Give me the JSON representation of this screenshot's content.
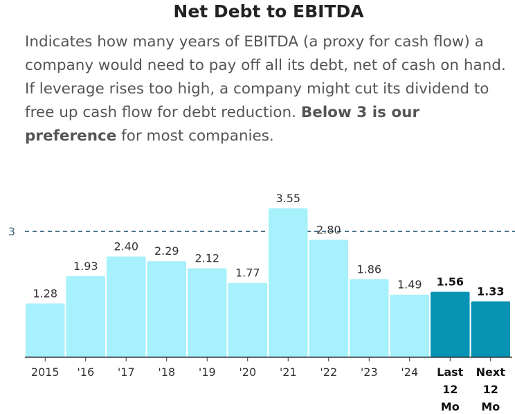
{
  "header": {
    "title": "Net Debt to EBITDA",
    "desc_part1": "Indicates how many years of EBITDA (a proxy for cash flow) a company would need to pay off all its debt, net of cash on hand. If leverage rises too high, a company might cut its dividend to free up cash flow for debt reduction. ",
    "desc_bold": "Below 3 is our preference",
    "desc_part2": " for most companies."
  },
  "chart_data": {
    "type": "bar",
    "title": "Net Debt to EBITDA",
    "categories": [
      "2015",
      "'16",
      "'17",
      "'18",
      "'19",
      "'20",
      "'21",
      "'22",
      "'23",
      "'24",
      "Last 12 Mo",
      "Next 12 Mo"
    ],
    "values": [
      1.28,
      1.93,
      2.4,
      2.29,
      2.12,
      1.77,
      3.55,
      2.8,
      1.86,
      1.49,
      1.56,
      1.33
    ],
    "value_labels": [
      "1.28",
      "1.93",
      "2.40",
      "2.29",
      "2.12",
      "1.77",
      "3.55",
      "2.80",
      "1.86",
      "1.49",
      "1.56",
      "1.33"
    ],
    "highlighted": [
      false,
      false,
      false,
      false,
      false,
      false,
      false,
      false,
      false,
      false,
      true,
      true
    ],
    "ylim": [
      0,
      4.2
    ],
    "reference_line": {
      "value": 3,
      "label": "3"
    },
    "grid": false,
    "colors": {
      "bar": "#a6f1fb",
      "highlight": "#0793b4",
      "reference": "#3e6b80",
      "axis": "#333333"
    }
  }
}
